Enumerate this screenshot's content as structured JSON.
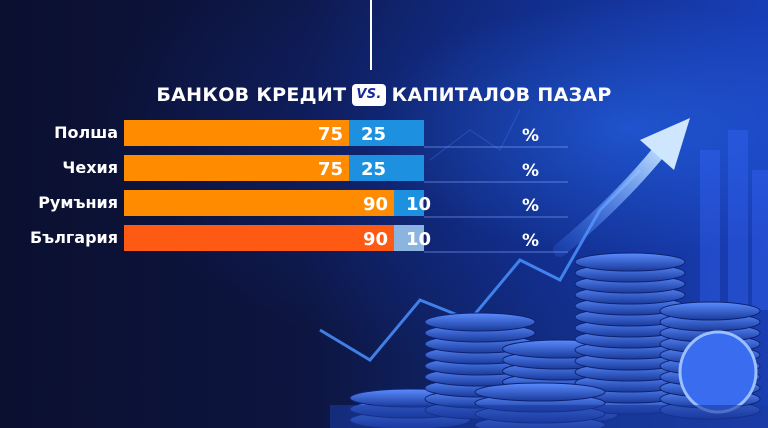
{
  "title": {
    "left": "БАНКОВ КРЕДИТ",
    "vs": "VS.",
    "right": "КАПИТАЛОВ ПАЗАР"
  },
  "unit": "%",
  "colors": {
    "bank": "#ff8c00",
    "bank_highlight": "#ff5a14",
    "capital": "#1e90e0",
    "capital_highlight": "#8cb4e0"
  },
  "chart_data": {
    "type": "bar",
    "orientation": "horizontal",
    "stacked": true,
    "categories": [
      "Полша",
      "Чехия",
      "Румъния",
      "България"
    ],
    "series": [
      {
        "name": "БАНКОВ КРЕДИТ",
        "values": [
          75,
          75,
          90,
          90
        ]
      },
      {
        "name": "КАПИТАЛОВ ПАЗАР",
        "values": [
          25,
          25,
          10,
          10
        ]
      }
    ],
    "xlim": [
      0,
      100
    ],
    "highlight_category": "България"
  }
}
